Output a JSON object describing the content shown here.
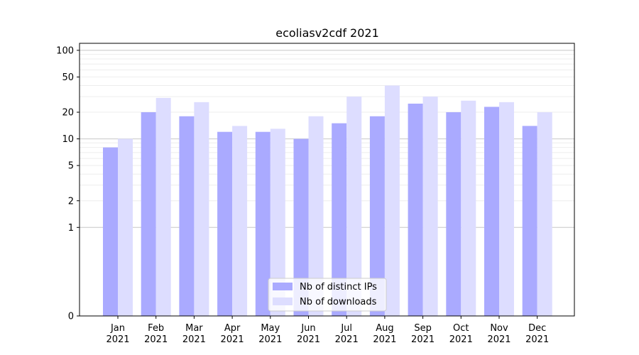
{
  "chart_data": {
    "type": "bar",
    "title": "ecoliasv2cdf 2021",
    "xlabel": "",
    "ylabel": "",
    "yscale": "symlog",
    "ylim": [
      0,
      120
    ],
    "yticks": [
      0,
      1,
      2,
      5,
      10,
      20,
      50,
      100
    ],
    "categories": [
      [
        "Jan",
        "2021"
      ],
      [
        "Feb",
        "2021"
      ],
      [
        "Mar",
        "2021"
      ],
      [
        "Apr",
        "2021"
      ],
      [
        "May",
        "2021"
      ],
      [
        "Jun",
        "2021"
      ],
      [
        "Jul",
        "2021"
      ],
      [
        "Aug",
        "2021"
      ],
      [
        "Sep",
        "2021"
      ],
      [
        "Oct",
        "2021"
      ],
      [
        "Nov",
        "2021"
      ],
      [
        "Dec",
        "2021"
      ]
    ],
    "series": [
      {
        "name": "Nb of distinct IPs",
        "color": "#aaaaff",
        "values": [
          8,
          20,
          18,
          12,
          12,
          10,
          15,
          18,
          25,
          20,
          23,
          14
        ]
      },
      {
        "name": "Nb of downloads",
        "color": "#ddddff",
        "values": [
          10,
          29,
          26,
          14,
          13,
          18,
          30,
          40,
          30,
          27,
          26,
          20
        ]
      }
    ],
    "legend": "lower-center",
    "grid": true
  }
}
